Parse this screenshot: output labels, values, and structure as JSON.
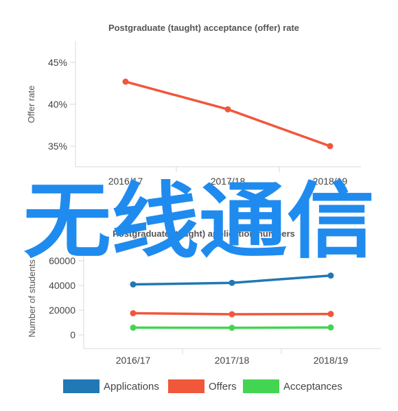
{
  "chart_data": [
    {
      "type": "line",
      "title": "Postgraduate (taught) acceptance (offer) rate",
      "xlabel": "",
      "ylabel": "Offer rate",
      "categories": [
        "2016/17",
        "2017/18",
        "2018/19"
      ],
      "y_ticks": [
        "35%",
        "40%",
        "45%"
      ],
      "ylim": [
        33,
        47
      ],
      "grid": false,
      "series": [
        {
          "name": "",
          "color": "#f0573b",
          "values": [
            42.7,
            39.4,
            35.0
          ]
        }
      ]
    },
    {
      "type": "line",
      "title": "Postgraduate (taught) application numbers",
      "xlabel": "",
      "ylabel": "Number of students",
      "categories": [
        "2016/17",
        "2017/18",
        "2018/19"
      ],
      "y_ticks": [
        "0",
        "20000",
        "40000",
        "60000"
      ],
      "ylim": [
        -8000,
        64000
      ],
      "grid": false,
      "legend_position": "bottom",
      "series": [
        {
          "name": "Applications",
          "color": "#2078b4",
          "values": [
            40800,
            42100,
            48000
          ]
        },
        {
          "name": "Offers",
          "color": "#f0573b",
          "values": [
            17500,
            16700,
            16900
          ]
        },
        {
          "name": "Acceptances",
          "color": "#43d552",
          "values": [
            5800,
            5700,
            6000
          ]
        }
      ]
    }
  ],
  "overlay": {
    "text": "无线通信",
    "color": "#1f8bef"
  }
}
